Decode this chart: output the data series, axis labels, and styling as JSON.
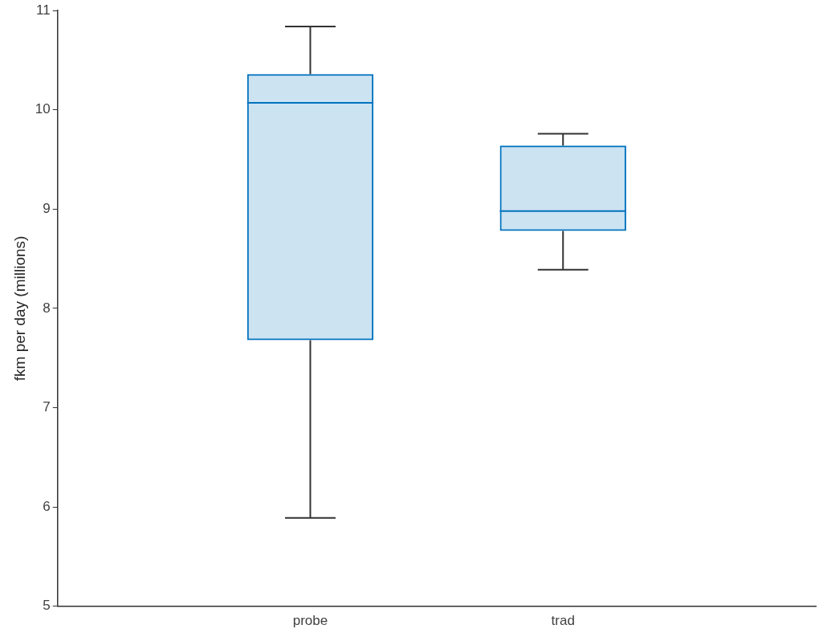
{
  "chart_data": {
    "type": "box",
    "ylabel": "fkm per day (millions)",
    "categories": [
      "probe",
      "trad"
    ],
    "ylim": [
      5,
      11
    ],
    "yticks": [
      5,
      6,
      7,
      8,
      9,
      10,
      11
    ],
    "grid": false,
    "legend": false,
    "color": "#0072bd",
    "boxes": [
      {
        "low": 5.89,
        "q1": 7.68,
        "median": 10.07,
        "q3": 10.36,
        "high": 10.84
      },
      {
        "low": 8.39,
        "q1": 8.78,
        "median": 8.98,
        "q3": 9.64,
        "high": 9.76
      }
    ]
  }
}
